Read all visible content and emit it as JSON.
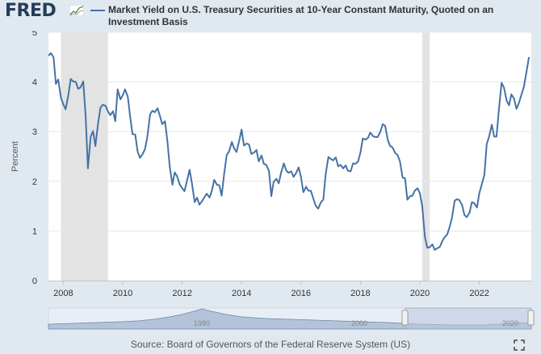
{
  "header": {
    "logo_text": "FRED",
    "logo_icon": "fred-chart-icon",
    "series_title": "Market Yield on U.S. Treasury Securities at 10-Year Constant Maturity, Quoted on an Investment Basis",
    "series_color": "#4572a7"
  },
  "footer": {
    "source": "Source: Board of Governors of the Federal Reserve System (US)",
    "fullscreen_icon": "fullscreen-icon"
  },
  "colors": {
    "background": "#e1e9f0",
    "plot_background": "#ffffff",
    "recession_shade": "#e3e3e3",
    "line": "#4572a7",
    "navigator_mask": "#b9c7dc"
  },
  "navigator": {
    "tick_labels": [
      "1980",
      "2000",
      "2020"
    ]
  },
  "chart_data": {
    "type": "line",
    "title": "Market Yield on U.S. Treasury Securities at 10-Year Constant Maturity, Quoted on an Investment Basis",
    "xlabel": "",
    "ylabel": "Percent",
    "xlim": [
      2007.5,
      2023.75
    ],
    "ylim": [
      0,
      5
    ],
    "xticks": [
      2008,
      2010,
      2012,
      2014,
      2016,
      2018,
      2020,
      2022
    ],
    "xtick_labels": [
      "2008",
      "2010",
      "2012",
      "2014",
      "2016",
      "2018",
      "2020",
      "2022"
    ],
    "yticks": [
      0,
      1,
      2,
      3,
      4,
      5
    ],
    "ytick_labels": [
      "0",
      "1",
      "2",
      "3",
      "4",
      "5"
    ],
    "grid": true,
    "recessions": [
      [
        2007.92,
        2009.5
      ],
      [
        2020.08,
        2020.33
      ]
    ],
    "series": [
      {
        "name": "Market Yield on U.S. Treasury Securities at 10-Year Constant Maturity, Quoted on an Investment Basis",
        "x": [
          2007.5,
          2007.58,
          2007.67,
          2007.75,
          2007.83,
          2007.92,
          2008.0,
          2008.08,
          2008.17,
          2008.25,
          2008.33,
          2008.42,
          2008.5,
          2008.58,
          2008.67,
          2008.75,
          2008.83,
          2008.92,
          2009.0,
          2009.08,
          2009.17,
          2009.25,
          2009.33,
          2009.42,
          2009.5,
          2009.58,
          2009.67,
          2009.75,
          2009.83,
          2009.92,
          2010.0,
          2010.08,
          2010.17,
          2010.25,
          2010.33,
          2010.42,
          2010.5,
          2010.58,
          2010.67,
          2010.75,
          2010.83,
          2010.92,
          2011.0,
          2011.08,
          2011.17,
          2011.25,
          2011.33,
          2011.42,
          2011.5,
          2011.58,
          2011.67,
          2011.75,
          2011.83,
          2011.92,
          2012.0,
          2012.08,
          2012.17,
          2012.25,
          2012.33,
          2012.42,
          2012.5,
          2012.58,
          2012.67,
          2012.75,
          2012.83,
          2012.92,
          2013.0,
          2013.08,
          2013.17,
          2013.25,
          2013.33,
          2013.42,
          2013.5,
          2013.58,
          2013.67,
          2013.75,
          2013.83,
          2013.92,
          2014.0,
          2014.08,
          2014.17,
          2014.25,
          2014.33,
          2014.42,
          2014.5,
          2014.58,
          2014.67,
          2014.75,
          2014.83,
          2014.92,
          2015.0,
          2015.08,
          2015.17,
          2015.25,
          2015.33,
          2015.42,
          2015.5,
          2015.58,
          2015.67,
          2015.75,
          2015.83,
          2015.92,
          2016.0,
          2016.08,
          2016.17,
          2016.25,
          2016.33,
          2016.42,
          2016.5,
          2016.58,
          2016.67,
          2016.75,
          2016.83,
          2016.92,
          2017.0,
          2017.08,
          2017.17,
          2017.25,
          2017.33,
          2017.42,
          2017.5,
          2017.58,
          2017.67,
          2017.75,
          2017.83,
          2017.92,
          2018.0,
          2018.08,
          2018.17,
          2018.25,
          2018.33,
          2018.42,
          2018.5,
          2018.58,
          2018.67,
          2018.75,
          2018.83,
          2018.92,
          2019.0,
          2019.08,
          2019.17,
          2019.25,
          2019.33,
          2019.42,
          2019.5,
          2019.58,
          2019.67,
          2019.75,
          2019.83,
          2019.92,
          2020.0,
          2020.08,
          2020.17,
          2020.25,
          2020.33,
          2020.42,
          2020.5,
          2020.58,
          2020.67,
          2020.75,
          2020.83,
          2020.92,
          2021.0,
          2021.08,
          2021.17,
          2021.25,
          2021.33,
          2021.42,
          2021.5,
          2021.58,
          2021.67,
          2021.75,
          2021.83,
          2021.92,
          2022.0,
          2022.08,
          2022.17,
          2022.25,
          2022.33,
          2022.42,
          2022.5,
          2022.58,
          2022.67,
          2022.75,
          2022.83,
          2022.92,
          2023.0,
          2023.08,
          2023.17,
          2023.25,
          2023.33,
          2023.42,
          2023.5,
          2023.58,
          2023.67
        ],
        "values": [
          4.53,
          4.58,
          4.5,
          3.96,
          4.05,
          3.68,
          3.55,
          3.45,
          3.74,
          4.06,
          4.01,
          4.0,
          3.86,
          3.89,
          4.01,
          3.33,
          2.26,
          2.9,
          3.01,
          2.71,
          3.17,
          3.48,
          3.54,
          3.52,
          3.41,
          3.33,
          3.41,
          3.21,
          3.85,
          3.65,
          3.73,
          3.85,
          3.7,
          3.3,
          2.95,
          2.94,
          2.6,
          2.47,
          2.55,
          2.65,
          2.9,
          3.35,
          3.42,
          3.39,
          3.47,
          3.32,
          3.15,
          3.21,
          2.83,
          2.31,
          1.93,
          2.18,
          2.1,
          1.93,
          1.86,
          1.8,
          2.03,
          2.23,
          1.96,
          1.58,
          1.67,
          1.53,
          1.6,
          1.68,
          1.75,
          1.67,
          1.81,
          2.03,
          1.93,
          1.92,
          1.71,
          2.19,
          2.53,
          2.6,
          2.79,
          2.66,
          2.59,
          2.82,
          3.04,
          2.72,
          2.76,
          2.74,
          2.55,
          2.58,
          2.63,
          2.4,
          2.52,
          2.35,
          2.33,
          2.21,
          1.7,
          1.99,
          2.05,
          1.96,
          2.17,
          2.36,
          2.22,
          2.17,
          2.2,
          2.09,
          2.16,
          2.28,
          2.08,
          1.78,
          1.89,
          1.81,
          1.81,
          1.64,
          1.5,
          1.45,
          1.58,
          1.63,
          2.14,
          2.49,
          2.45,
          2.42,
          2.48,
          2.3,
          2.33,
          2.26,
          2.32,
          2.21,
          2.2,
          2.36,
          2.35,
          2.4,
          2.58,
          2.86,
          2.84,
          2.87,
          2.98,
          2.91,
          2.89,
          2.89,
          3.0,
          3.15,
          3.12,
          2.83,
          2.71,
          2.68,
          2.57,
          2.53,
          2.4,
          2.07,
          2.06,
          1.63,
          1.7,
          1.71,
          1.81,
          1.86,
          1.76,
          1.5,
          0.87,
          0.66,
          0.67,
          0.73,
          0.62,
          0.65,
          0.68,
          0.79,
          0.87,
          0.93,
          1.08,
          1.26,
          1.61,
          1.64,
          1.62,
          1.52,
          1.32,
          1.28,
          1.37,
          1.58,
          1.56,
          1.47,
          1.76,
          1.93,
          2.13,
          2.75,
          2.9,
          3.14,
          2.9,
          2.9,
          3.52,
          3.98,
          3.89,
          3.62,
          3.53,
          3.75,
          3.66,
          3.46,
          3.57,
          3.75,
          3.9,
          4.17,
          4.5
        ]
      }
    ]
  }
}
